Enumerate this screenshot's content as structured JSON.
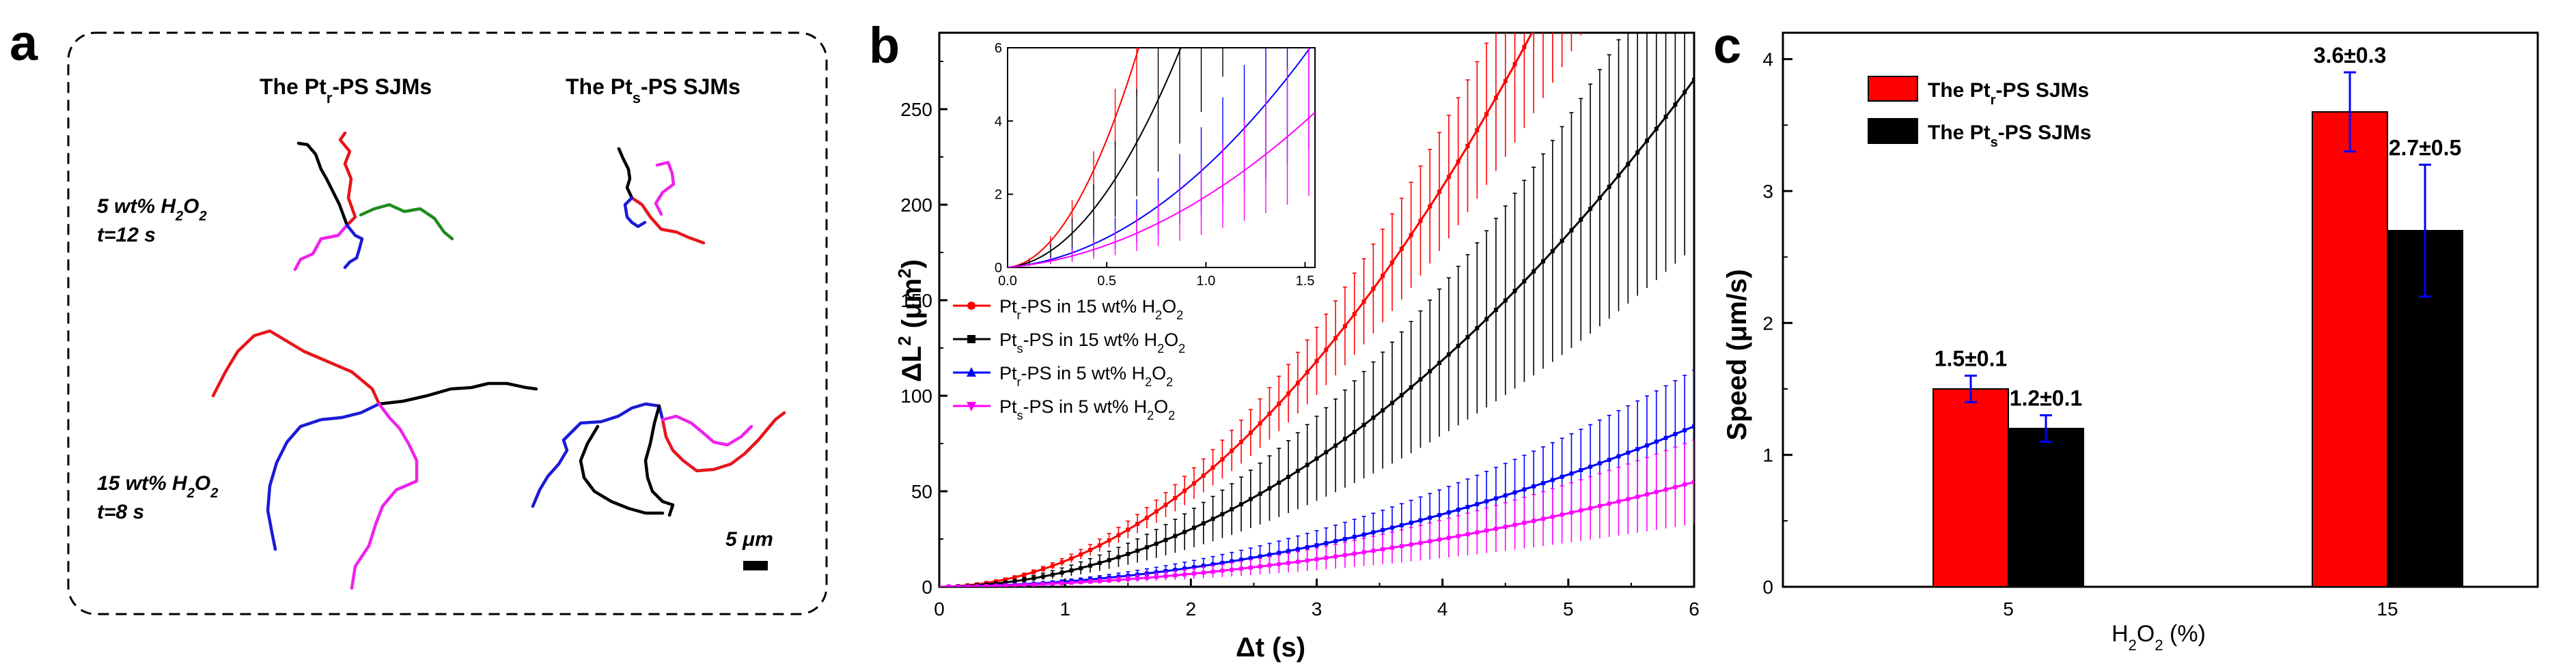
{
  "panels": {
    "a": {
      "label": "a",
      "header_pt_r": "The Pt",
      "header_pt_r_sub": "r",
      "header_pt_s": "The Pt",
      "header_pt_s_sub": "s",
      "header_suffix": "-PS SJMs",
      "cond1_line1": "5 wt% H",
      "cond1_line1_sub": "2",
      "cond1_line1_end": "O",
      "cond1_line1_sub2": "2",
      "cond1_line2": "t=12 s",
      "cond2_line1": "15 wt% H",
      "cond2_line1_sub": "2",
      "cond2_line1_end": "O",
      "cond2_line1_sub2": "2",
      "cond2_line2": "t=8 s",
      "scalebar": "5 μm",
      "colors": [
        "#e8141b",
        "#000000",
        "#1a1ad6",
        "#ee22ee",
        "#1e8a1e"
      ]
    },
    "b": {
      "label": "b",
      "legend": [
        {
          "pre": "Pt",
          "sub": "r",
          "post": "-PS in 15 wt% H",
          "sub2": "2",
          "end": "O",
          "sub3": "2",
          "color": "#ff0000",
          "marker": "circle"
        },
        {
          "pre": "Pt",
          "sub": "s",
          "post": "-PS in 15 wt% H",
          "sub2": "2",
          "end": "O",
          "sub3": "2",
          "color": "#000000",
          "marker": "square"
        },
        {
          "pre": "Pt",
          "sub": "r",
          "post": "-PS in 5 wt% H",
          "sub2": "2",
          "end": "O",
          "sub3": "2",
          "color": "#0000ff",
          "marker": "triangle"
        },
        {
          "pre": "Pt",
          "sub": "s",
          "post": "-PS in 5 wt% H",
          "sub2": "2",
          "end": "O",
          "sub3": "2",
          "color": "#ff00ff",
          "marker": "triangle-down"
        }
      ]
    },
    "c": {
      "label": "c",
      "legend": [
        {
          "pre": "The Pt",
          "sub": "r",
          "post": "-PS SJMs",
          "color": "#ff0000"
        },
        {
          "pre": "The Pt",
          "sub": "s",
          "post": "-PS SJMs",
          "color": "#000000"
        }
      ]
    }
  },
  "chart_data": [
    {
      "panel": "b",
      "type": "line",
      "title": "",
      "xlabel": "Δt (s)",
      "ylabel": "ΔL² (μm²)",
      "xlim": [
        0,
        6
      ],
      "ylim": [
        0,
        290
      ],
      "xticks": [
        "0",
        "1",
        "2",
        "3",
        "4",
        "5",
        "6"
      ],
      "yticks": [
        "0",
        "50",
        "100",
        "150",
        "200",
        "250"
      ],
      "series": [
        {
          "name": "Ptr-PS in 15 wt% H2O2",
          "color": "#ff0000",
          "v": 3.6,
          "err_frac": 0.15
        },
        {
          "name": "Pts-PS in 15 wt% H2O2",
          "color": "#000000",
          "v": 2.7,
          "err_frac": 0.33
        },
        {
          "name": "Ptr-PS in 5 wt% H2O2",
          "color": "#0000ff",
          "v": 1.5,
          "err_frac": 0.35
        },
        {
          "name": "Pts-PS in 5 wt% H2O2",
          "color": "#ff00ff",
          "v": 1.2,
          "err_frac": 0.4
        }
      ],
      "diffusion_offset": 0.5,
      "x_end": 6,
      "n_points": 80,
      "inset": {
        "xlim": [
          0,
          1.55
        ],
        "ylim": [
          0,
          6
        ],
        "xticks": [
          "0.0",
          "0.5",
          "1.0",
          "1.5"
        ],
        "yticks": [
          "0",
          "2",
          "4",
          "6"
        ]
      }
    },
    {
      "panel": "c",
      "type": "bar",
      "title": "",
      "xlabel": "H₂O₂ (%)",
      "ylabel": "Speed (μm/s)",
      "categories": [
        "5",
        "15"
      ],
      "ylim": [
        0,
        4.2
      ],
      "yticks": [
        "0",
        "1",
        "2",
        "3",
        "4"
      ],
      "series": [
        {
          "name": "The Ptr-PS SJMs",
          "color": "#ff0000",
          "values": [
            1.5,
            3.6
          ],
          "errors": [
            0.1,
            0.3
          ],
          "labels": [
            "1.5±0.1",
            "3.6±0.3"
          ]
        },
        {
          "name": "The Pts-PS SJMs",
          "color": "#000000",
          "values": [
            1.2,
            2.7
          ],
          "errors": [
            0.1,
            0.5
          ],
          "labels": [
            "1.2±0.1",
            "2.7±0.5"
          ]
        }
      ]
    }
  ]
}
